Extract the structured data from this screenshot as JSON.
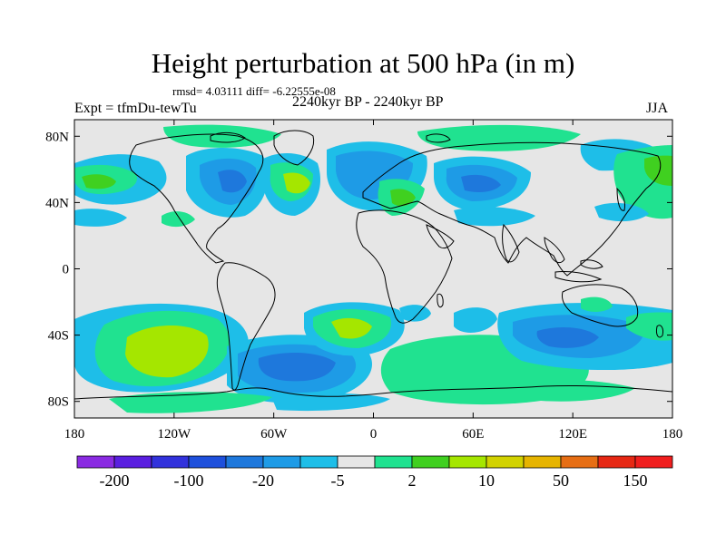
{
  "title": "Height perturbation at 500 hPa (in m)",
  "stats": "rmsd= 4.03111 diff= -6.22555e-08",
  "experiment": "Expt = tfmDu-tewTu",
  "period": "2240kyr BP - 2240kyr BP",
  "season": "JJA",
  "map": {
    "projection": "cylindrical-equidistant",
    "lon_range": [
      -180,
      180
    ],
    "lat_range": [
      -90,
      90
    ],
    "background": "#e6e6e6"
  },
  "lat_ticks": [
    {
      "value": 80,
      "label": "80N"
    },
    {
      "value": 40,
      "label": "40N"
    },
    {
      "value": 0,
      "label": "0"
    },
    {
      "value": -40,
      "label": "40S"
    },
    {
      "value": -80,
      "label": "80S"
    }
  ],
  "lon_ticks": [
    {
      "value": -180,
      "label": "180"
    },
    {
      "value": -120,
      "label": "120W"
    },
    {
      "value": -60,
      "label": "60W"
    },
    {
      "value": 0,
      "label": "0"
    },
    {
      "value": 60,
      "label": "60E"
    },
    {
      "value": 120,
      "label": "120E"
    },
    {
      "value": 180,
      "label": "180"
    }
  ],
  "colorbar": {
    "colors": [
      "#8a2be2",
      "#5a1fe0",
      "#3232dc",
      "#1e50dc",
      "#1e78dc",
      "#1e9be6",
      "#1ebee8",
      "#e6e6e6",
      "#20e290",
      "#40d020",
      "#a5e600",
      "#d2d200",
      "#e6b400",
      "#e66e14",
      "#e62814",
      "#f01e1e"
    ],
    "labels": [
      "-200",
      "-100",
      "-20",
      "-5",
      "2",
      "10",
      "50",
      "150"
    ]
  },
  "color_levels": {
    "cyan": "#1ebee8",
    "blue1": "#1e9be6",
    "blue2": "#1e78dc",
    "green": "#20e290",
    "lgreen": "#40d020",
    "yellow": "#a5e600"
  }
}
